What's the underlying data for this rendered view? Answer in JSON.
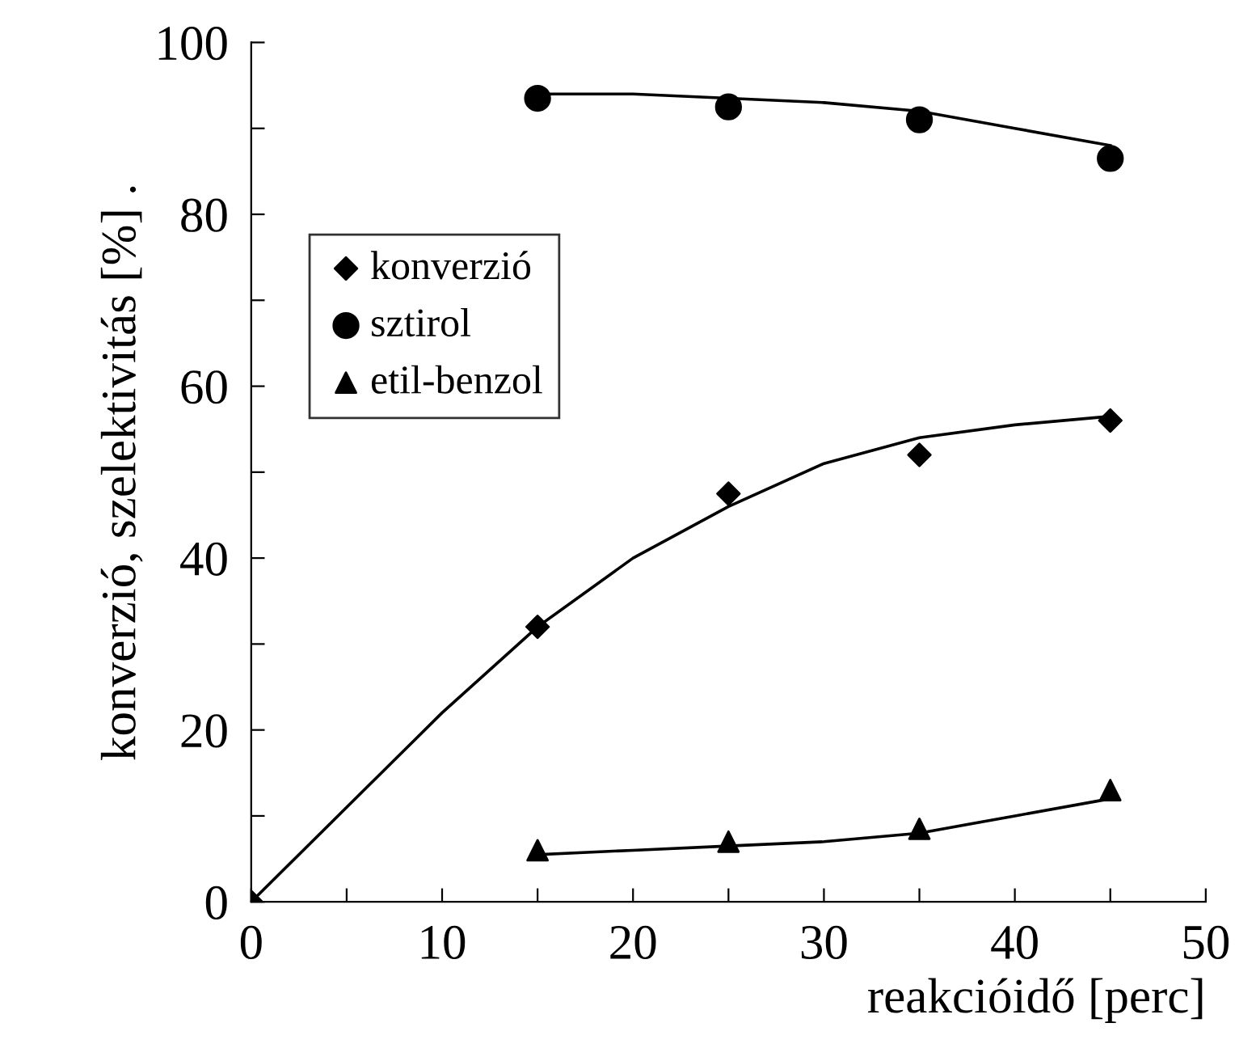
{
  "chart_data": {
    "type": "scatter",
    "xlabel": "reakcióidő [perc]",
    "ylabel": "konverzió, szelektivitás [%] .",
    "xlim": [
      0,
      50
    ],
    "ylim": [
      0,
      100
    ],
    "xticks": [
      0,
      {
        "value": 5,
        "label": null
      },
      10,
      {
        "value": 15,
        "label": null
      },
      20,
      {
        "value": 25,
        "label": null
      },
      30,
      {
        "value": 35,
        "label": null
      },
      40,
      {
        "value": 45,
        "label": null
      },
      50
    ],
    "yticks": [
      0,
      {
        "value": 10,
        "label": null
      },
      20,
      {
        "value": 30,
        "label": null
      },
      40,
      {
        "value": 50,
        "label": null
      },
      60,
      {
        "value": 70,
        "label": null
      },
      80,
      {
        "value": 90,
        "label": null
      },
      100
    ],
    "grid": false,
    "legend": "top left",
    "series": [
      {
        "name": "konverzió",
        "color": "#000000",
        "marker": "diamond",
        "x": [
          0,
          15,
          25,
          35,
          45
        ],
        "values": [
          0,
          32,
          47.5,
          52,
          56
        ]
      },
      {
        "name": "sztirol",
        "color": "#000000",
        "marker": "circle",
        "x": [
          15,
          25,
          35,
          45
        ],
        "values": [
          93.5,
          92.5,
          91,
          86.5
        ]
      },
      {
        "name": "etil-benzol",
        "color": "#000000",
        "marker": "triangle",
        "x": [
          15,
          25,
          35,
          45
        ],
        "values": [
          6,
          7,
          8.5,
          13
        ]
      },
      {
        "type": "line",
        "color": "#000000",
        "marker": "none",
        "line_style": "solid",
        "x": [
          0,
          5,
          10,
          15,
          20,
          25,
          30,
          35,
          40,
          45
        ],
        "values": [
          0,
          11,
          22,
          32,
          40,
          46,
          51,
          54,
          55.5,
          56.5
        ]
      },
      {
        "type": "line",
        "color": "#000000",
        "marker": "none",
        "line_style": "solid",
        "x": [
          15,
          20,
          25,
          30,
          35,
          40,
          45
        ],
        "values": [
          94,
          94,
          93.5,
          93,
          92,
          90,
          88
        ]
      },
      {
        "type": "line",
        "color": "#000000",
        "marker": "none",
        "line_style": "solid",
        "x": [
          15,
          20,
          25,
          30,
          35,
          40,
          45
        ],
        "values": [
          5.5,
          6,
          6.5,
          7,
          8,
          10,
          12
        ]
      }
    ]
  }
}
